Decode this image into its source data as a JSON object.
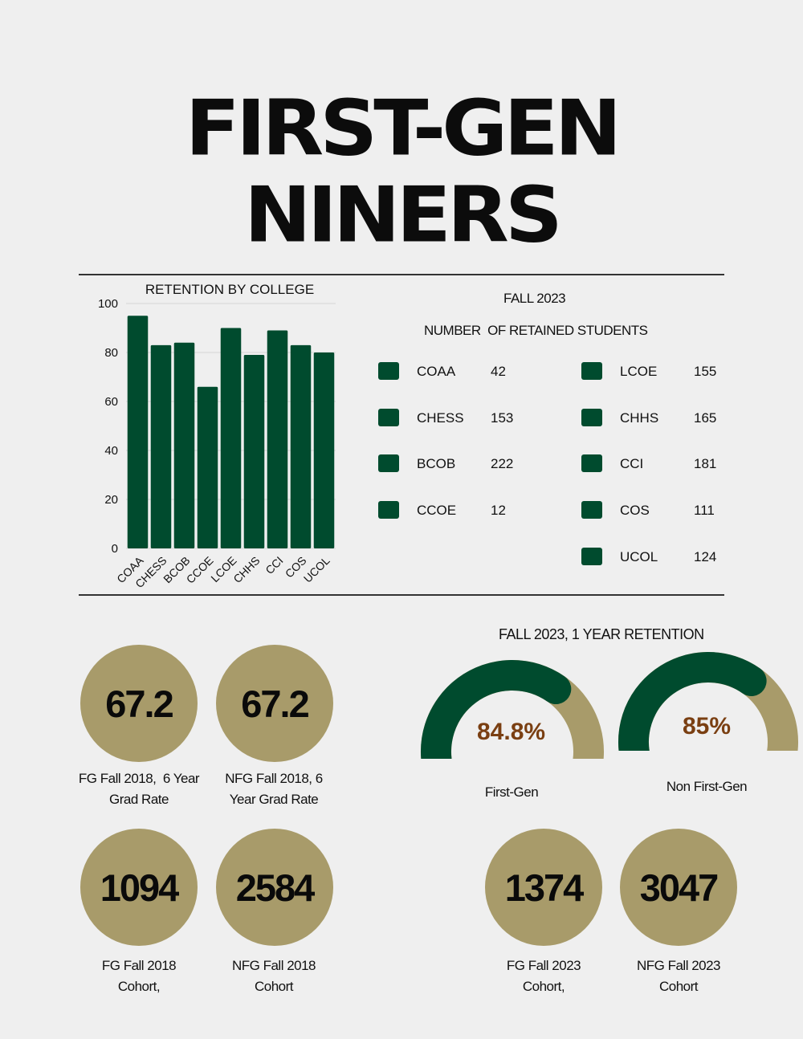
{
  "title": {
    "line1": "FIRST-GEN",
    "line2": "NINERS"
  },
  "colors": {
    "green": "#004b2e",
    "gold": "#a89b6a",
    "brown": "#7a3f12",
    "background": "#efefef"
  },
  "chart_data": {
    "type": "bar",
    "title": "RETENTION BY COLLEGE",
    "categories": [
      "COAA",
      "CHESS",
      "BCOB",
      "CCOE",
      "LCOE",
      "CHHS",
      "CCI",
      "COS",
      "UCOL"
    ],
    "values": [
      95,
      83,
      84,
      66,
      90,
      79,
      89,
      83,
      80
    ],
    "ylim": [
      0,
      100
    ],
    "yticks": [
      0,
      20,
      40,
      60,
      80,
      100
    ],
    "grid": true,
    "color": "#004b2e"
  },
  "retained": {
    "heading1": "FALL 2023",
    "heading2": "NUMBER  OF RETAINED STUDENTS",
    "left": [
      {
        "name": "COAA",
        "value": "42"
      },
      {
        "name": "CHESS",
        "value": "153"
      },
      {
        "name": "BCOB",
        "value": "222"
      },
      {
        "name": "CCOE",
        "value": "12"
      }
    ],
    "right": [
      {
        "name": "LCOE",
        "value": "155"
      },
      {
        "name": "CHHS",
        "value": "165"
      },
      {
        "name": "CCI",
        "value": "181"
      },
      {
        "name": "COS",
        "value": "111"
      },
      {
        "name": "UCOL",
        "value": "124"
      }
    ]
  },
  "grad_rates": [
    {
      "value": "67.2",
      "caption_line1": "FG Fall 2018,  6 Year",
      "caption_line2": "Grad Rate"
    },
    {
      "value": "67.2",
      "caption_line1": "NFG Fall 2018, 6",
      "caption_line2": "Year Grad Rate"
    }
  ],
  "cohorts_2018": [
    {
      "value": "1094",
      "caption_line1": "FG Fall 2018",
      "caption_line2": "Cohort,"
    },
    {
      "value": "2584",
      "caption_line1": "NFG Fall 2018",
      "caption_line2": "Cohort"
    }
  ],
  "retention_2023": {
    "title": "FALL 2023, 1 YEAR RETENTION",
    "gauges": [
      {
        "label": "84.8%",
        "percent": 84.8,
        "caption": "First-Gen"
      },
      {
        "label": "85%",
        "percent": 85,
        "caption": "Non First-Gen"
      }
    ]
  },
  "cohorts_2023": [
    {
      "value": "1374",
      "caption_line1": "FG Fall 2023",
      "caption_line2": "Cohort,"
    },
    {
      "value": "3047",
      "caption_line1": "NFG Fall 2023",
      "caption_line2": "Cohort"
    }
  ]
}
